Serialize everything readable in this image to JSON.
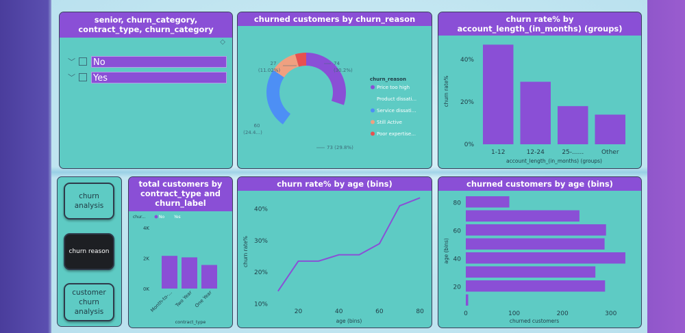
{
  "slicer": {
    "title": "senior, churn_category, contract_type, churn_category",
    "items": [
      {
        "label": "No"
      },
      {
        "label": "Yes"
      }
    ]
  },
  "nav": {
    "buttons": [
      {
        "label": "churn analysis",
        "active": false
      },
      {
        "label": "churn reason",
        "active": true
      },
      {
        "label": "customer churn analysis",
        "active": false
      }
    ]
  },
  "colors": {
    "accent": "#8a4fd6",
    "panel": "#5ecbc4",
    "blue": "#4d8ff5",
    "orange": "#f0a080",
    "red": "#e8504f"
  },
  "chart_data": [
    {
      "id": "donut",
      "type": "pie",
      "title": "churned customers by churn_reason",
      "legend_title": "churn_reason",
      "legend_position": "right",
      "slices": [
        {
          "name": "Price too high",
          "value": 74,
          "label": "74",
          "pct": "(30.2%)",
          "color": "#8a4fd6"
        },
        {
          "name": "Product dissati...",
          "value": 73,
          "label": "73 (29.8%)",
          "pct": "",
          "color": "#5ecbc4"
        },
        {
          "name": "Service dissati...",
          "value": 60,
          "label": "60",
          "pct": "(24.4...)",
          "color": "#4d8ff5"
        },
        {
          "name": "Still Active",
          "value": 27,
          "label": "27",
          "pct": "(11.02%)",
          "color": "#f0a080"
        },
        {
          "name": "Poor expertise...",
          "value": 11,
          "label": "",
          "pct": "",
          "color": "#e8504f"
        }
      ]
    },
    {
      "id": "account",
      "type": "bar",
      "title": "churn rate% by account_length_(in_months) (groups)",
      "xlabel": "account_length_(in_months) (groups)",
      "ylabel": "churn rate%",
      "categories": [
        "1-12",
        "12-24",
        "25-......",
        "Other"
      ],
      "values": [
        47,
        29.5,
        18,
        14
      ],
      "ylim": [
        0,
        50
      ],
      "yticks": [
        0,
        20,
        40
      ],
      "ytick_labels": [
        "0%",
        "20%",
        "40%"
      ]
    },
    {
      "id": "contract",
      "type": "bar",
      "title": "total customers by contract_type and churn_label",
      "legend_title": "chur...",
      "legend": [
        "No",
        "Yes"
      ],
      "xlabel": "contract_type",
      "categories": [
        "Month-to-...",
        "Two Year",
        "One Year"
      ],
      "values": [
        2150,
        2050,
        1550
      ],
      "ylim": [
        0,
        4000
      ],
      "yticks": [
        0,
        2000,
        4000
      ],
      "ytick_labels": [
        "0K",
        "2K",
        "4K"
      ]
    },
    {
      "id": "age_rate",
      "type": "line",
      "title": "churn rate% by age (bins)",
      "xlabel": "age (bins)",
      "ylabel": "churn rate%",
      "x": [
        10,
        20,
        30,
        40,
        50,
        60,
        70,
        80
      ],
      "y": [
        14,
        23.5,
        23.5,
        25.5,
        25.5,
        29,
        41,
        43.5
      ],
      "xlim": [
        7,
        83
      ],
      "ylim": [
        9,
        44
      ],
      "xticks": [
        20,
        40,
        60,
        80
      ],
      "yticks": [
        10,
        20,
        30,
        40
      ],
      "ytick_labels": [
        "10%",
        "20%",
        "30%",
        "40%"
      ]
    },
    {
      "id": "age_count",
      "type": "bar",
      "orientation": "horizontal",
      "title": "churned customers by age (bins)",
      "xlabel": "churned customers",
      "ylabel": "age (bins)",
      "categories": [
        80,
        70,
        60,
        50,
        40,
        30,
        20,
        10
      ],
      "values": [
        90,
        235,
        290,
        287,
        330,
        268,
        288,
        5
      ],
      "xlim": [
        0,
        340
      ],
      "xticks": [
        0,
        100,
        200,
        300
      ],
      "ytick_labels": [
        "80",
        "60",
        "40",
        "20"
      ]
    }
  ]
}
